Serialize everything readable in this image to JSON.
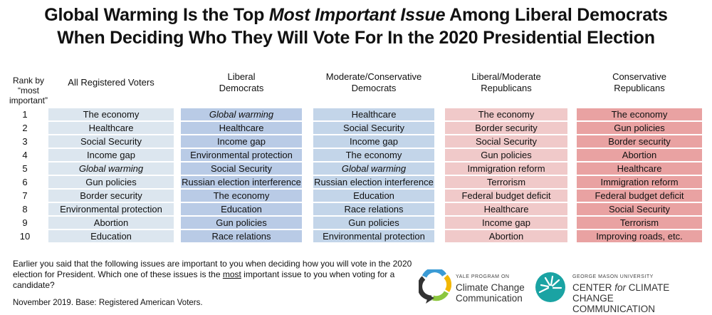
{
  "title_line1_a": "Global Warming Is the Top ",
  "title_line1_em": "Most Important Issue",
  "title_line1_b": " Among Liberal Democrats",
  "title_line2": "When Deciding Who They Will Vote For In the 2020 Presidential Election",
  "rank_header": [
    "Rank by",
    "“most",
    "important”"
  ],
  "chart_data": {
    "type": "table",
    "rows_label": "Rank by “most important”",
    "ranks": [
      "1",
      "2",
      "3",
      "4",
      "5",
      "6",
      "7",
      "8",
      "9",
      "10"
    ],
    "columns": [
      {
        "header": [
          "All Registered Voters"
        ],
        "color": "#dce6ef",
        "items": [
          "The economy",
          "Healthcare",
          "Social Security",
          "Income gap",
          "Global warming",
          "Gun policies",
          "Border security",
          "Environmental protection",
          "Abortion",
          "Education"
        ]
      },
      {
        "header": [
          "Liberal",
          "Democrats"
        ],
        "color": "#b9cbe6",
        "items": [
          "Global warming",
          "Healthcare",
          "Income gap",
          "Environmental protection",
          "Social Security",
          "Russian election interference",
          "The economy",
          "Education",
          "Gun policies",
          "Race relations"
        ]
      },
      {
        "header": [
          "Moderate/Conservative",
          "Democrats"
        ],
        "color": "#c3d5e9",
        "items": [
          "Healthcare",
          "Social Security",
          "Income gap",
          "The economy",
          "Global warming",
          "Russian election interference",
          "Education",
          "Race relations",
          "Gun policies",
          "Environmental protection"
        ]
      },
      {
        "header": [
          "Liberal/Moderate",
          "Republicans"
        ],
        "color": "#f0c9c9",
        "items": [
          "The economy",
          "Border security",
          "Social Security",
          "Gun policies",
          "Immigration reform",
          "Terrorism",
          "Federal budget deficit",
          "Healthcare",
          "Income gap",
          "Abortion"
        ]
      },
      {
        "header": [
          "Conservative",
          "Republicans"
        ],
        "color": "#e9a2a2",
        "items": [
          "The economy",
          "Gun policies",
          "Border security",
          "Abortion",
          "Healthcare",
          "Immigration reform",
          "Federal budget deficit",
          "Social Security",
          "Terrorism",
          "Improving roads, etc."
        ]
      }
    ],
    "highlight": "Global warming"
  },
  "footer_a": "Earlier you said that the following issues are important to you when deciding how you will vote in the 2020 election for President. Which one of these issues is the ",
  "footer_u": "most",
  "footer_b": " important issue to you when voting for a candidate?",
  "date": "November 2019. Base: Registered American Voters.",
  "logo1": {
    "small": "YALE PROGRAM ON",
    "line1": "Climate Change",
    "line2": "Communication"
  },
  "logo2": {
    "small": "GEORGE MASON UNIVERSITY",
    "line1a": "CENTER ",
    "line1em": "for",
    "line1b": " CLIMATE CHANGE",
    "line2": "COMMUNICATION"
  }
}
